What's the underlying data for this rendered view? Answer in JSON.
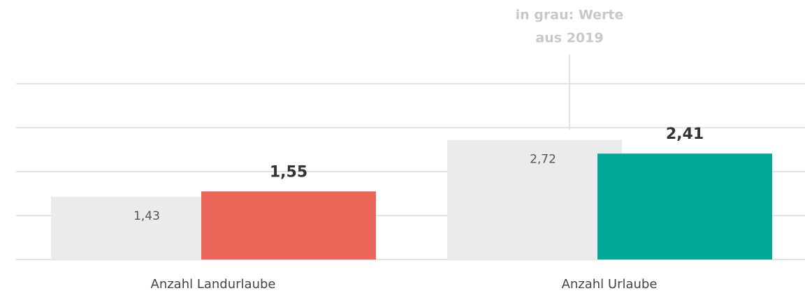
{
  "chart_data": {
    "type": "bar",
    "categories": [
      "Anzahl Landurlaube",
      "Anzahl Urlaube"
    ],
    "series": [
      {
        "color": "#ebebeb",
        "values": [
          1.43,
          2.72
        ],
        "value_labels": [
          "1,43",
          "2,72"
        ]
      },
      {
        "colors": [
          "#ec6759",
          "#00a99a"
        ],
        "values": [
          1.55,
          2.41
        ],
        "value_labels": [
          "1,55",
          "2,41"
        ]
      }
    ],
    "annotation": [
      "in grau: Werte",
      "aus 2019"
    ],
    "ylim": [
      0,
      4
    ],
    "yticks": [
      0,
      1,
      2,
      3,
      4
    ],
    "grid": true
  }
}
